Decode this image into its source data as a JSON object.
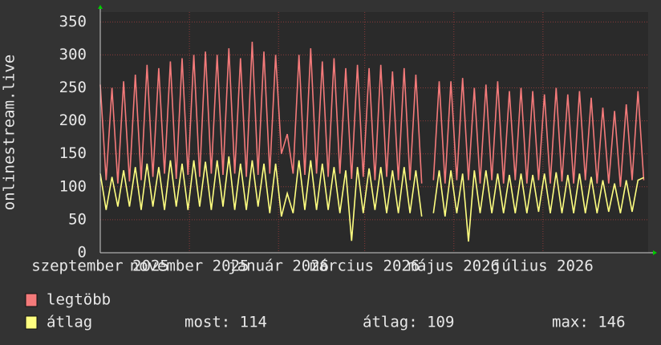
{
  "chart_data": {
    "type": "line",
    "y_label": "onlinestream.live",
    "x": [
      0,
      4,
      8,
      12,
      16,
      20,
      24,
      28,
      32,
      36,
      40,
      44,
      48,
      52,
      56,
      60,
      64,
      68,
      72,
      76,
      80,
      84,
      88,
      92,
      96,
      100,
      104,
      108,
      112,
      116,
      120,
      124,
      128,
      132,
      136,
      140,
      144,
      148,
      152,
      156,
      160,
      164,
      168,
      172,
      176,
      180,
      184,
      188,
      192,
      196,
      200,
      204,
      208,
      212,
      216,
      220,
      224,
      228,
      232,
      236,
      240,
      244,
      248,
      252,
      256,
      260,
      264,
      268,
      272,
      276,
      280,
      284,
      288,
      292,
      296,
      300,
      304,
      308,
      312,
      316,
      320,
      324,
      328,
      332,
      336,
      340,
      344,
      348,
      352,
      356,
      360,
      364,
      368,
      372
    ],
    "series": [
      {
        "name": "legtöbb",
        "color": "#f47a7a",
        "values": [
          255,
          110,
          250,
          105,
          260,
          108,
          270,
          110,
          285,
          115,
          280,
          120,
          290,
          112,
          295,
          118,
          300,
          115,
          305,
          120,
          300,
          118,
          310,
          120,
          295,
          115,
          320,
          118,
          305,
          120,
          300,
          150,
          180,
          120,
          300,
          118,
          310,
          120,
          290,
          115,
          295,
          120,
          280,
          112,
          285,
          115,
          280,
          110,
          285,
          115,
          275,
          110,
          280,
          110,
          270,
          105,
          null,
          110,
          260,
          105,
          260,
          110,
          265,
          110,
          250,
          105,
          255,
          110,
          260,
          105,
          245,
          110,
          250,
          105,
          245,
          110,
          240,
          105,
          250,
          108,
          240,
          105,
          245,
          110,
          235,
          105,
          220,
          105,
          215,
          100,
          225,
          110,
          245,
          110
        ]
      },
      {
        "name": "átlag",
        "color": "#ffff80",
        "values": [
          120,
          65,
          115,
          70,
          125,
          70,
          130,
          65,
          135,
          70,
          130,
          65,
          140,
          70,
          135,
          65,
          140,
          70,
          138,
          65,
          140,
          70,
          146,
          65,
          135,
          65,
          140,
          70,
          135,
          60,
          135,
          55,
          90,
          60,
          140,
          65,
          140,
          65,
          135,
          65,
          130,
          60,
          125,
          18,
          130,
          60,
          128,
          65,
          130,
          60,
          125,
          60,
          130,
          60,
          125,
          55,
          null,
          60,
          125,
          55,
          125,
          60,
          120,
          17,
          125,
          60,
          125,
          60,
          120,
          60,
          118,
          60,
          120,
          60,
          118,
          62,
          120,
          60,
          122,
          60,
          118,
          60,
          120,
          60,
          115,
          60,
          110,
          62,
          105,
          60,
          110,
          62,
          110,
          114
        ]
      }
    ],
    "stats": [
      "most: 114",
      "átlag: 109",
      "max: 146"
    ],
    "xlim": [
      0,
      375
    ],
    "xticks": [
      {
        "value": 0,
        "label": "szeptember 2025"
      },
      {
        "value": 61,
        "label": "november 2025"
      },
      {
        "value": 122,
        "label": "január 2026"
      },
      {
        "value": 181,
        "label": "március 2026"
      },
      {
        "value": 242,
        "label": "május 2026"
      },
      {
        "value": 303,
        "label": "július 2026"
      }
    ],
    "ylim": [
      0,
      365
    ],
    "yticks": [
      0,
      50,
      100,
      150,
      200,
      250,
      300,
      350
    ],
    "grid": true
  }
}
